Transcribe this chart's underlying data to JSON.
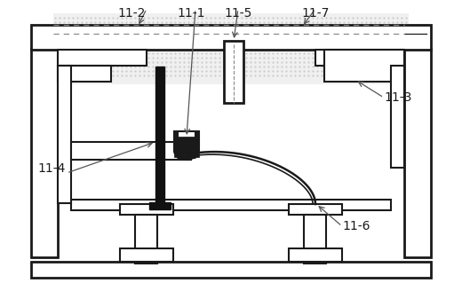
{
  "background_color": "#ffffff",
  "line_color": "#1a1a1a",
  "label_color": "#1a1a1a",
  "arrow_color": "#555555",
  "dashed_color": "#888888",
  "dotted_bg_color": "#e8e8e8",
  "font_size": 10
}
